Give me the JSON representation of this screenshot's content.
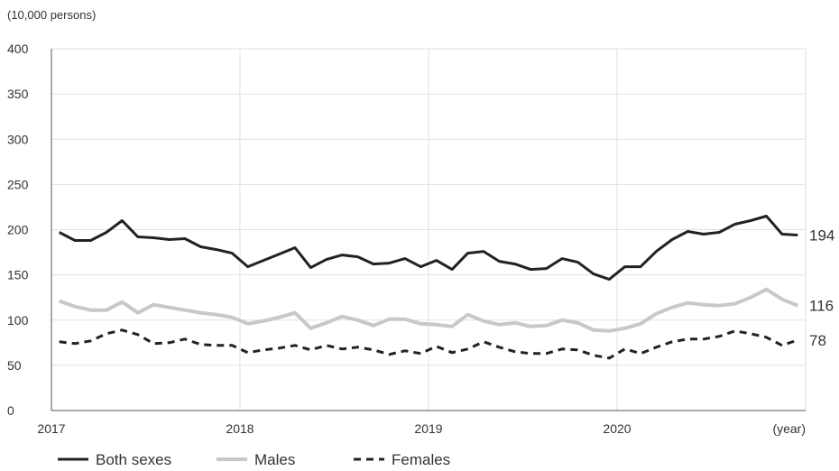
{
  "chart_data": {
    "type": "line",
    "y_unit_label": "(10,000 persons)",
    "x_unit_label": "(year)",
    "x_ticks": [
      "2017",
      "2018",
      "2019",
      "2020"
    ],
    "y_ticks": [
      "0",
      "50",
      "100",
      "150",
      "200",
      "250",
      "300",
      "350",
      "400"
    ],
    "ylim": [
      0,
      400
    ],
    "x_range": [
      "2017-01",
      "2020-12"
    ],
    "grid": "vertical and horizontal",
    "legend_position": "bottom",
    "x": [
      "2017-01",
      "2017-02",
      "2017-03",
      "2017-04",
      "2017-05",
      "2017-06",
      "2017-07",
      "2017-08",
      "2017-09",
      "2017-10",
      "2017-11",
      "2017-12",
      "2018-01",
      "2018-02",
      "2018-03",
      "2018-04",
      "2018-05",
      "2018-06",
      "2018-07",
      "2018-08",
      "2018-09",
      "2018-10",
      "2018-11",
      "2018-12",
      "2019-01",
      "2019-02",
      "2019-03",
      "2019-04",
      "2019-05",
      "2019-06",
      "2019-07",
      "2019-08",
      "2019-09",
      "2019-10",
      "2019-11",
      "2019-12",
      "2020-01",
      "2020-02",
      "2020-03",
      "2020-04",
      "2020-05",
      "2020-06",
      "2020-07",
      "2020-08",
      "2020-09",
      "2020-10",
      "2020-11",
      "2020-12"
    ],
    "series": [
      {
        "name": "Both sexes",
        "color": "#222222",
        "dash": "solid",
        "end_label": "194",
        "values": [
          197,
          188,
          188,
          197,
          210,
          192,
          191,
          189,
          190,
          181,
          178,
          174,
          159,
          166,
          173,
          180,
          158,
          167,
          172,
          170,
          162,
          163,
          168,
          159,
          166,
          156,
          174,
          176,
          165,
          162,
          156,
          157,
          168,
          164,
          151,
          145,
          159,
          159,
          176,
          189,
          198,
          195,
          197,
          206,
          210,
          215,
          195,
          194
        ]
      },
      {
        "name": "Males",
        "color": "#c8c8c8",
        "dash": "solid",
        "end_label": "116",
        "values": [
          121,
          115,
          111,
          111,
          120,
          108,
          117,
          114,
          111,
          108,
          106,
          103,
          96,
          99,
          103,
          108,
          91,
          97,
          104,
          100,
          94,
          101,
          101,
          96,
          95,
          93,
          106,
          99,
          95,
          97,
          93,
          94,
          100,
          97,
          89,
          88,
          91,
          96,
          107,
          114,
          119,
          117,
          116,
          118,
          125,
          134,
          123,
          116
        ]
      },
      {
        "name": "Females",
        "color": "#222222",
        "dash": "dashed",
        "end_label": "78",
        "values": [
          76,
          74,
          77,
          85,
          89,
          84,
          74,
          75,
          79,
          73,
          72,
          72,
          64,
          67,
          69,
          72,
          67,
          72,
          68,
          70,
          67,
          62,
          66,
          63,
          71,
          64,
          68,
          76,
          70,
          65,
          63,
          63,
          68,
          67,
          61,
          58,
          68,
          63,
          70,
          76,
          79,
          79,
          82,
          88,
          85,
          81,
          72,
          78
        ]
      }
    ]
  }
}
